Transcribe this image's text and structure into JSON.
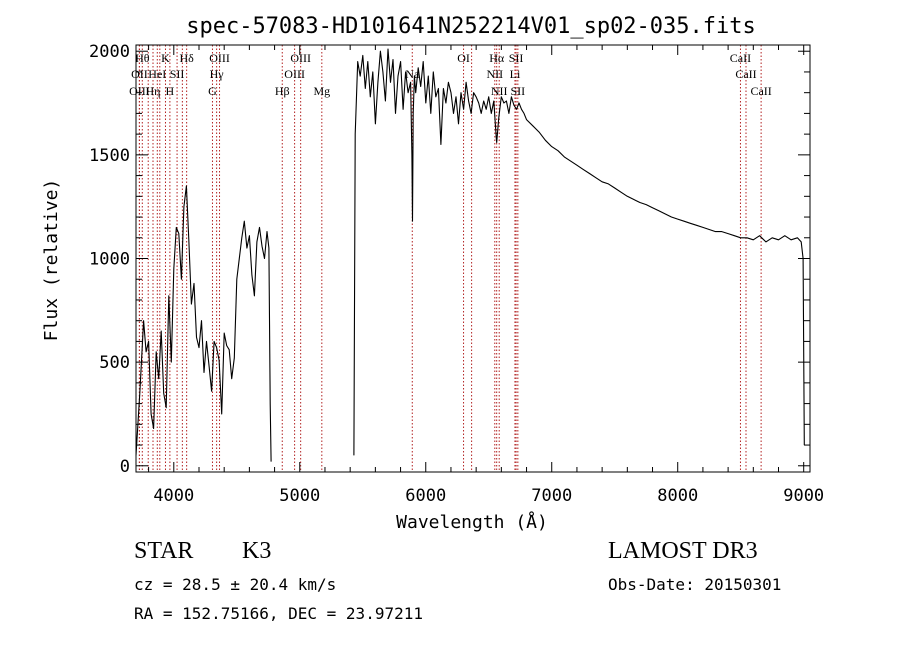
{
  "chart_data": {
    "type": "line",
    "title": "spec-57083-HD101641N252214V01_sp02-035.fits",
    "xlabel": "Wavelength (Å)",
    "ylabel": "Flux (relative)",
    "xlim": [
      3700,
      9050
    ],
    "ylim": [
      -30,
      2030
    ],
    "xticks": [
      4000,
      5000,
      6000,
      7000,
      8000,
      9000
    ],
    "yticks": [
      0,
      500,
      1000,
      1500,
      2000
    ],
    "grid": false,
    "color": "#000000",
    "line_color": "#b22222",
    "series": [
      {
        "segments": [
          {
            "x": [
              3700,
              3730,
              3760,
              3780,
              3800,
              3820,
              3840,
              3860,
              3880,
              3900,
              3920,
              3940,
              3960,
              3980,
              4000,
              4020,
              4040,
              4060,
              4080,
              4100,
              4120,
              4140,
              4160,
              4180,
              4200,
              4220,
              4240,
              4260,
              4280,
              4300,
              4320,
              4340,
              4360,
              4380,
              4400,
              4420,
              4440,
              4460,
              4480,
              4500,
              4520,
              4540,
              4560,
              4580,
              4600,
              4620,
              4640,
              4660,
              4680,
              4700,
              4720,
              4740,
              4755,
              4765,
              4772
            ],
            "y": [
              50,
              350,
              700,
              550,
              600,
              250,
              180,
              550,
              420,
              650,
              350,
              280,
              820,
              500,
              950,
              1150,
              1120,
              900,
              1250,
              1350,
              1080,
              780,
              880,
              620,
              570,
              700,
              450,
              600,
              480,
              360,
              600,
              570,
              510,
              250,
              640,
              580,
              560,
              420,
              520,
              900,
              1000,
              1100,
              1180,
              1050,
              1110,
              920,
              820,
              1080,
              1150,
              1060,
              1000,
              1130,
              1050,
              300,
              20
            ]
          },
          {
            "x": [
              5430,
              5440,
              5460,
              5480,
              5500,
              5520,
              5540,
              5560,
              5580,
              5600,
              5620,
              5640,
              5660,
              5680,
              5700,
              5720,
              5740,
              5760,
              5780,
              5800,
              5820,
              5840,
              5860,
              5880,
              5890,
              5895,
              5900,
              5910,
              5920,
              5940,
              5960,
              5980,
              6000,
              6020,
              6040,
              6060,
              6080,
              6100,
              6120,
              6140,
              6160,
              6180,
              6200,
              6220,
              6240,
              6260,
              6280,
              6300,
              6320,
              6340,
              6360,
              6380,
              6400,
              6420,
              6440,
              6460,
              6480,
              6500,
              6520,
              6540,
              6560,
              6563,
              6580,
              6600,
              6620,
              6640,
              6660,
              6680,
              6700,
              6720,
              6740,
              6760,
              6780,
              6800,
              6850,
              6900,
              6950,
              7000,
              7050,
              7100,
              7150,
              7200,
              7250,
              7300,
              7350,
              7400,
              7450,
              7500,
              7550,
              7600,
              7650,
              7700,
              7750,
              7800,
              7850,
              7900,
              7950,
              8000,
              8050,
              8100,
              8150,
              8200,
              8250,
              8300,
              8350,
              8400,
              8450,
              8500,
              8550,
              8600,
              8650,
              8700,
              8750,
              8800,
              8850,
              8900,
              8950,
              8980,
              8995,
              9005
            ],
            "y": [
              50,
              1600,
              1950,
              1880,
              1980,
              1820,
              1950,
              1780,
              1900,
              1650,
              1850,
              2000,
              1900,
              1760,
              2010,
              1850,
              1960,
              1700,
              1880,
              1950,
              1720,
              1900,
              1800,
              1850,
              1500,
              1180,
              1700,
              1880,
              1800,
              1920,
              1830,
              1950,
              1750,
              1880,
              1700,
              1900,
              1780,
              1820,
              1550,
              1820,
              1750,
              1850,
              1800,
              1700,
              1780,
              1650,
              1800,
              1720,
              1850,
              1760,
              1700,
              1800,
              1780,
              1750,
              1700,
              1760,
              1720,
              1780,
              1700,
              1760,
              1580,
              1560,
              1680,
              1780,
              1750,
              1760,
              1700,
              1780,
              1740,
              1720,
              1750,
              1720,
              1700,
              1670,
              1640,
              1610,
              1570,
              1540,
              1520,
              1490,
              1470,
              1450,
              1430,
              1410,
              1390,
              1370,
              1360,
              1340,
              1320,
              1300,
              1285,
              1270,
              1260,
              1245,
              1230,
              1215,
              1200,
              1190,
              1180,
              1170,
              1160,
              1150,
              1140,
              1130,
              1130,
              1120,
              1110,
              1100,
              1100,
              1090,
              1110,
              1080,
              1100,
              1090,
              1110,
              1090,
              1100,
              1080,
              1000,
              100
            ]
          }
        ]
      }
    ],
    "lines": [
      {
        "w": 3750,
        "tier": 1,
        "label": "Hθ"
      },
      {
        "w": 3727,
        "tier": 2,
        "label": "OII"
      },
      {
        "w": 3727,
        "tier": 3,
        "label": "OIII"
      },
      {
        "w": 3797,
        "tier": 1,
        "label": ""
      },
      {
        "w": 3835,
        "tier": 3,
        "label": "Hη"
      },
      {
        "w": 3869,
        "tier": 2,
        "label": "HeI"
      },
      {
        "w": 3889,
        "tier": 2,
        "label": ""
      },
      {
        "w": 3934,
        "tier": 1,
        "label": "K"
      },
      {
        "w": 3969,
        "tier": 3,
        "label": "H"
      },
      {
        "w": 4026,
        "tier": 2,
        "label": "SII"
      },
      {
        "w": 4068,
        "tier": 2,
        "label": ""
      },
      {
        "w": 4102,
        "tier": 1,
        "label": "Hδ"
      },
      {
        "w": 4307,
        "tier": 3,
        "label": "G"
      },
      {
        "w": 4340,
        "tier": 2,
        "label": "Hγ"
      },
      {
        "w": 4363,
        "tier": 1,
        "label": "OIII"
      },
      {
        "w": 4861,
        "tier": 3,
        "label": "Hβ"
      },
      {
        "w": 4959,
        "tier": 2,
        "label": "OIII"
      },
      {
        "w": 5007,
        "tier": 1,
        "label": "OIII"
      },
      {
        "w": 5175,
        "tier": 3,
        "label": "Mg"
      },
      {
        "w": 5893,
        "tier": 2,
        "label": "Na"
      },
      {
        "w": 6300,
        "tier": 1,
        "label": "OI"
      },
      {
        "w": 6364,
        "tier": 1,
        "label": ""
      },
      {
        "w": 6548,
        "tier": 2,
        "label": "NII"
      },
      {
        "w": 6563,
        "tier": 1,
        "label": "Hα"
      },
      {
        "w": 6583,
        "tier": 3,
        "label": "NII"
      },
      {
        "w": 6708,
        "tier": 2,
        "label": "Li"
      },
      {
        "w": 6717,
        "tier": 1,
        "label": "SII"
      },
      {
        "w": 6731,
        "tier": 3,
        "label": "SII"
      },
      {
        "w": 8498,
        "tier": 1,
        "label": "CaII"
      },
      {
        "w": 8542,
        "tier": 2,
        "label": "CaII"
      },
      {
        "w": 8662,
        "tier": 3,
        "label": "CaII"
      }
    ]
  },
  "info": {
    "class": "STAR",
    "subclass": "K3",
    "survey": "LAMOST DR3",
    "cz": "cz = 28.5 ± 20.4 km/s",
    "obs_date": "Obs-Date: 20150301",
    "coords": "RA = 152.75166, DEC =  23.97211"
  }
}
